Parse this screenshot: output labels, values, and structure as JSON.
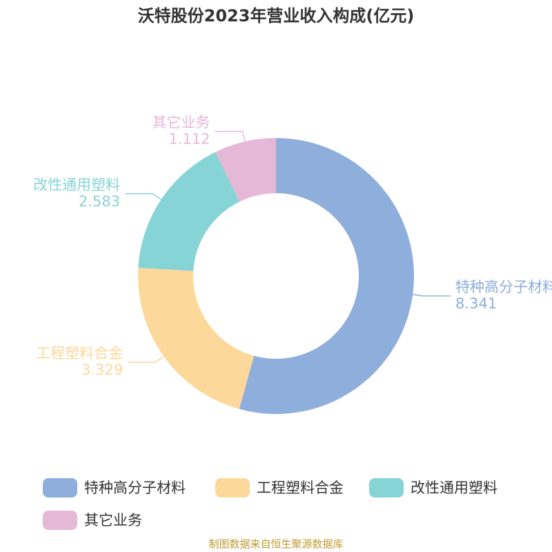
{
  "chart_data": {
    "type": "donut",
    "title": "沃特股份2023年营业收入构成(亿元)",
    "categories": [
      "特种高分子材料",
      "工程塑料合金",
      "改性通用塑料",
      "其它业务"
    ],
    "values": [
      8.341,
      3.329,
      2.583,
      1.112
    ],
    "colors": [
      "#8eaedb",
      "#fdd89b",
      "#86d4d6",
      "#e6b8d8"
    ],
    "source": "制图数据来自恒生聚源数据库"
  }
}
